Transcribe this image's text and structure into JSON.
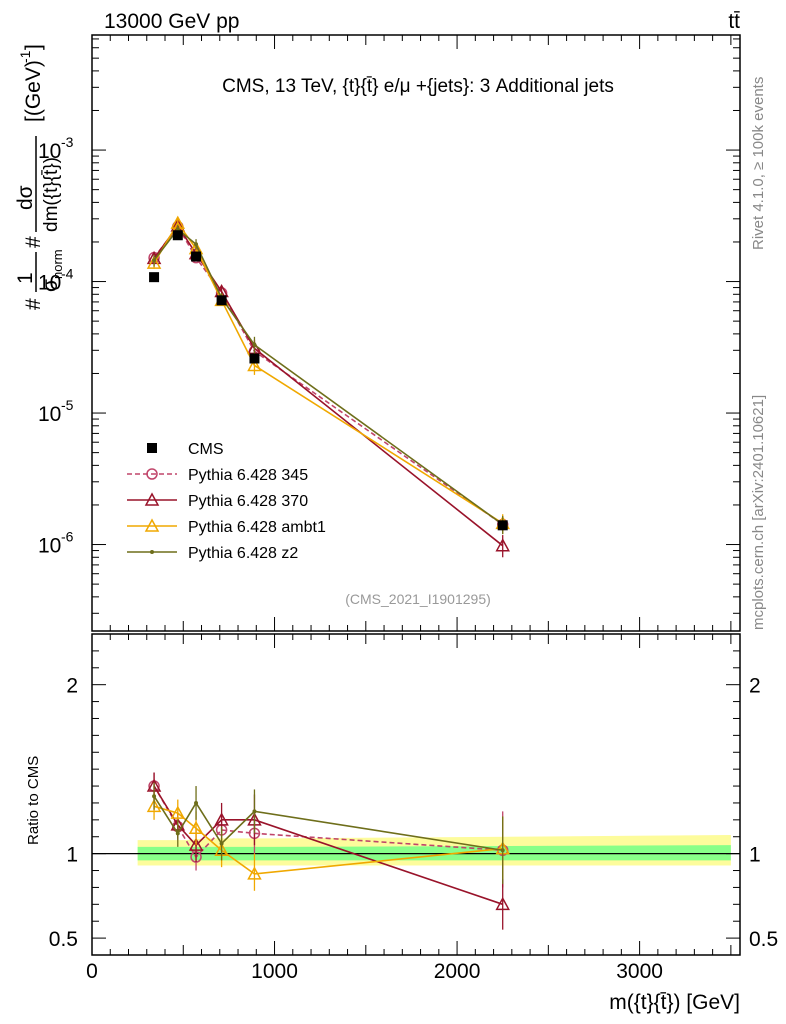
{
  "header": {
    "left": "13000 GeV pp",
    "right": "tt̄"
  },
  "side_text": {
    "rivet": "Rivet 4.1.0, ≥ 100k events",
    "mcplots": "mcplots.cern.ch [arXiv:2401.10621]"
  },
  "chart_data": [
    {
      "type": "scatter",
      "panel": "main",
      "title": "CMS, 13 TeV, {t}{t̄} e/μ +{jets}: 3 Additional jets",
      "ylabel": "#1/σnorm #dσ/dm({t}{t̄}) [(GeV)^-1]",
      "ylabel_parts": {
        "hash1": "#",
        "one": "1",
        "sigma_norm": "σ",
        "norm_sub": "norm",
        "hash2": "#",
        "dsigma": "dσ",
        "dm": "dm({t}{t̄})",
        "unit": "[(GeV)",
        "unit_exp": "-1",
        "unit_close": "]"
      },
      "xlabel": "m({t}{t̄}) [GeV]",
      "yscale": "log",
      "xlim": [
        0,
        3550
      ],
      "ylim": [
        2.2e-07,
        0.0075
      ],
      "yticks": [
        {
          "value": 1e-06,
          "base": "10",
          "exp": "-6"
        },
        {
          "value": 1e-05,
          "base": "10",
          "exp": "-5"
        },
        {
          "value": 0.0001,
          "base": "10",
          "exp": "-4"
        },
        {
          "value": 0.001,
          "base": "10",
          "exp": "-3"
        }
      ],
      "x": [
        340,
        470,
        570,
        710,
        890,
        2250
      ],
      "series": [
        {
          "name": "CMS",
          "color": "#000000",
          "marker": "square",
          "values": [
            0.000108,
            0.000225,
            0.000155,
            7.2e-05,
            2.6e-05,
            1.4e-06
          ]
        },
        {
          "name": "Pythia 6.428 345",
          "color": "#c0456a",
          "marker": "circle",
          "dashed": true,
          "values": [
            0.000152,
            0.000262,
            0.000152,
            8.2e-05,
            2.95e-05,
            1.42e-06
          ]
        },
        {
          "name": "Pythia 6.428 370",
          "color": "#99132a",
          "marker": "triangle",
          "values": [
            0.00015,
            0.000265,
            0.000163,
            8.4e-05,
            3.1e-05,
            9.8e-07
          ],
          "err_lo": [
            0.000135,
            0.000245,
            0.000145,
            7.6e-05,
            2.6e-05,
            8e-07
          ],
          "err_hi": [
            0.000165,
            0.000285,
            0.00018,
            9.2e-05,
            3.6e-05,
            1.18e-06
          ]
        },
        {
          "name": "Pythia 6.428 ambt1",
          "color": "#f0a800",
          "marker": "triangle",
          "values": [
            0.000138,
            0.000278,
            0.000178,
            7.2e-05,
            2.3e-05,
            1.45e-06
          ],
          "err_lo": [
            0.000125,
            0.000255,
            0.00016,
            6.6e-05,
            1.95e-05,
            1.2e-06
          ],
          "err_hi": [
            0.000152,
            0.0003,
            0.000195,
            7.8e-05,
            2.6e-05,
            1.7e-06
          ]
        },
        {
          "name": "Pythia 6.428 z2",
          "color": "#6e6e1a",
          "marker": "dot",
          "values": [
            0.000145,
            0.00025,
            0.000192,
            7.5e-05,
            3.3e-05,
            1.42e-06
          ],
          "err_lo": [
            0.00013,
            0.00023,
            0.000175,
            6.8e-05,
            2.8e-05,
            1.2e-06
          ],
          "err_hi": [
            0.00016,
            0.00027,
            0.00021,
            8.2e-05,
            3.8e-05,
            1.65e-06
          ]
        }
      ],
      "annotation": "(CMS_2021_I1901295)"
    },
    {
      "type": "line",
      "panel": "ratio",
      "ylabel": "Ratio to CMS",
      "xlabel": "m({t}{t̄}) [GeV]",
      "xlim": [
        0,
        3550
      ],
      "ylim": [
        0.4,
        2.3
      ],
      "yticks": [
        0.5,
        1,
        2
      ],
      "ytick_labels": [
        "0.5",
        "1",
        "2"
      ],
      "xticks": [
        0,
        1000,
        2000,
        3000
      ],
      "xtick_labels": [
        "0",
        "1000",
        "2000",
        "3000"
      ],
      "bands": [
        {
          "name": "total uncertainty",
          "color": "#fdfc9c",
          "x": [
            250,
            410,
            520,
            620,
            800,
            1000,
            3500
          ],
          "lo": [
            0.93,
            0.93,
            0.93,
            0.93,
            0.93,
            0.93,
            0.93
          ],
          "hi": [
            1.08,
            1.08,
            1.08,
            1.09,
            1.09,
            1.09,
            1.11
          ]
        },
        {
          "name": "stat uncertainty",
          "color": "#88ff88",
          "x": [
            250,
            410,
            520,
            620,
            800,
            1000,
            3500
          ],
          "lo": [
            0.96,
            0.96,
            0.96,
            0.96,
            0.96,
            0.96,
            0.96
          ],
          "hi": [
            1.04,
            1.04,
            1.04,
            1.04,
            1.04,
            1.04,
            1.05
          ]
        }
      ],
      "x": [
        340,
        470,
        570,
        710,
        890,
        2250
      ],
      "series": [
        {
          "name": "Pythia 6.428 345",
          "color": "#c0456a",
          "marker": "circle",
          "dashed": true,
          "values": [
            1.4,
            1.16,
            0.98,
            1.14,
            1.12,
            1.02
          ],
          "err_lo": [
            1.32,
            1.08,
            0.9,
            1.05,
            1.0,
            0.8
          ],
          "err_hi": [
            1.48,
            1.24,
            1.08,
            1.22,
            1.25,
            1.25
          ]
        },
        {
          "name": "Pythia 6.428 370",
          "color": "#99132a",
          "marker": "triangle",
          "values": [
            1.4,
            1.17,
            1.05,
            1.2,
            1.2,
            0.7
          ],
          "err_lo": [
            1.32,
            1.09,
            0.95,
            1.1,
            1.05,
            0.55
          ],
          "err_hi": [
            1.48,
            1.25,
            1.15,
            1.3,
            1.35,
            0.9
          ]
        },
        {
          "name": "Pythia 6.428 ambt1",
          "color": "#f0a800",
          "marker": "triangle",
          "values": [
            1.28,
            1.24,
            1.15,
            1.02,
            0.88,
            1.03
          ],
          "err_lo": [
            1.2,
            1.16,
            1.05,
            0.92,
            0.78,
            0.85
          ],
          "err_hi": [
            1.36,
            1.32,
            1.25,
            1.12,
            1.0,
            1.22
          ]
        },
        {
          "name": "Pythia 6.428 z2",
          "color": "#6e6e1a",
          "marker": "dot",
          "values": [
            1.34,
            1.12,
            1.3,
            1.06,
            1.25,
            1.02
          ],
          "err_lo": [
            1.26,
            1.04,
            1.2,
            0.96,
            1.12,
            0.82
          ],
          "err_hi": [
            1.42,
            1.2,
            1.4,
            1.16,
            1.38,
            1.22
          ]
        }
      ]
    }
  ]
}
